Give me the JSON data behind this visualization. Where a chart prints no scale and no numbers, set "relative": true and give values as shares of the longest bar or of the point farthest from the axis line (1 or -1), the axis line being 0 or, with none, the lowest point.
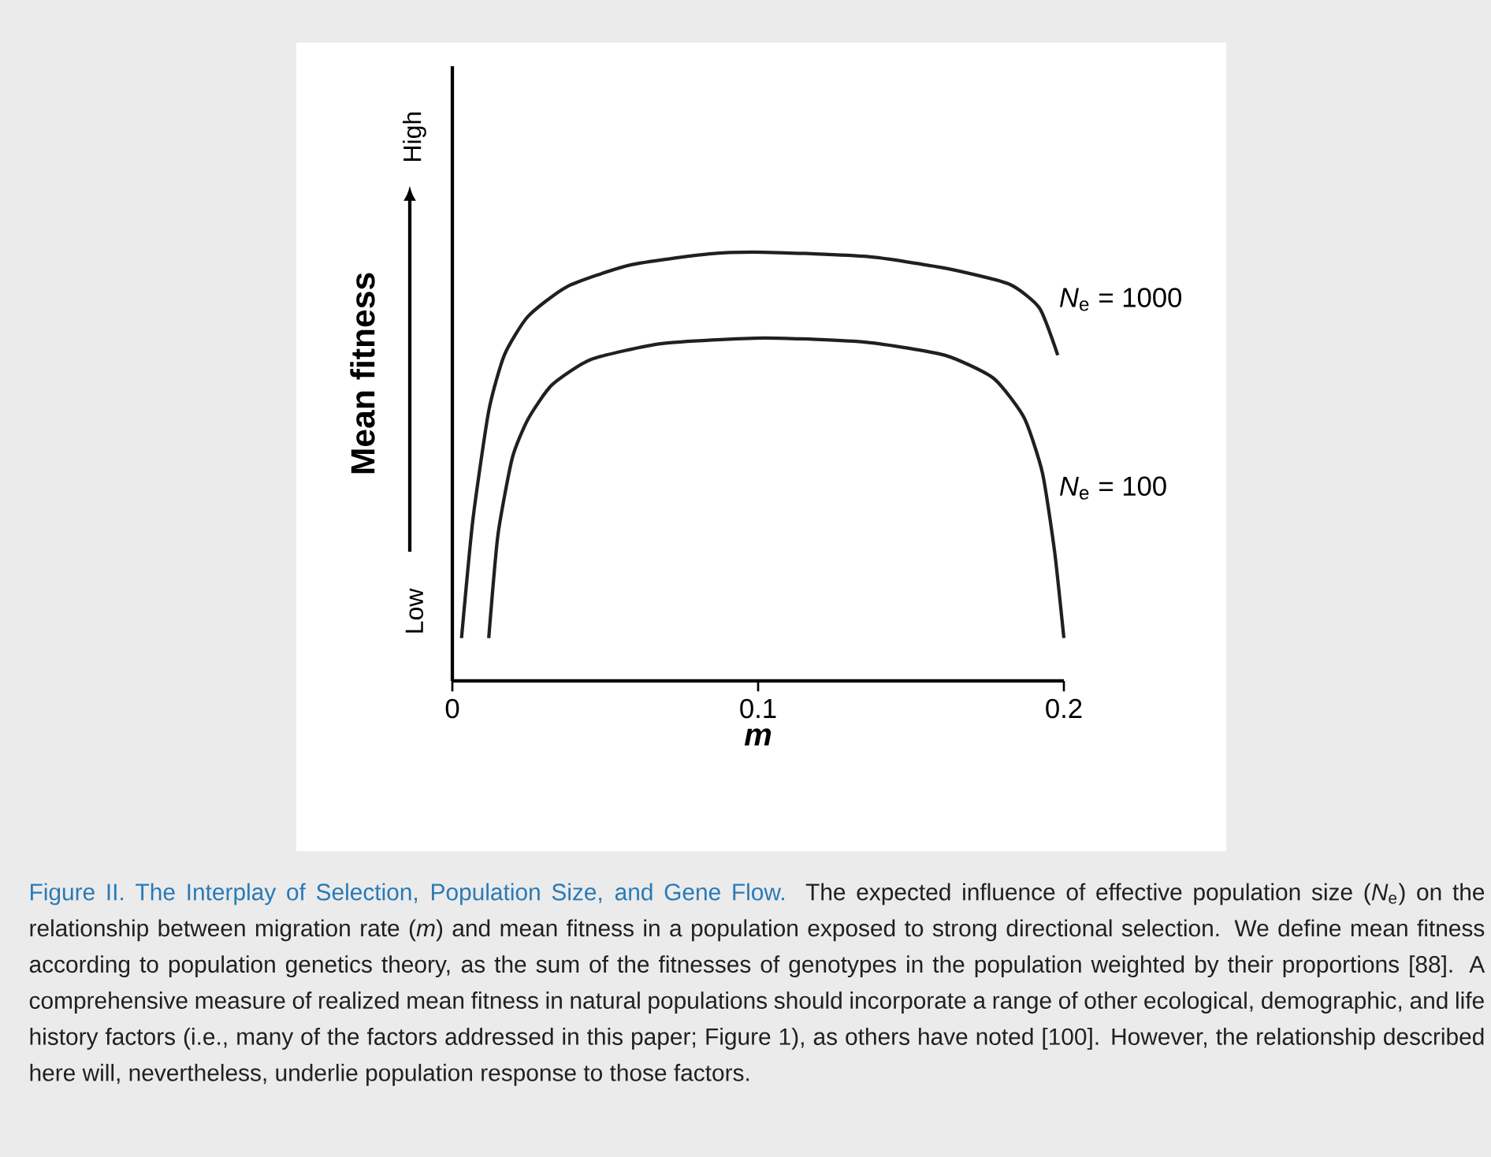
{
  "chart_data": {
    "type": "line",
    "relative": true,
    "xlabel": "m",
    "ylabel": "Mean fitness",
    "xlim": [
      0,
      0.2
    ],
    "xticks": [
      0,
      0.1,
      0.2
    ],
    "annotations": [
      "Figure II. The Interplay of Selection, Population Size, and Gene Flow.",
      "The expected influence of effective population size (*N*$_{e}$) on the relationship between migration rate (*m*) and mean fitness in a population exposed to strong directional selection. We define mean fitness according to population genetics theory, as the sum of the fitnesses of genotypes in the population weighted by their proportions [88]. A comprehensive measure of realized mean fitness in natural populations should incorporate a range of other ecological, demographic, and life history factors (i.e., many of the factors addressed in this paper; Figure 1), as others have noted [100]. However, the relationship described here will, nevertheless, underlie population response to those factors.",
      "Low",
      "High"
    ],
    "series": [
      {
        "name": "*N*$_{e}$ = 1000",
        "color": "#231f20",
        "x": [
          0.003,
          0.0067,
          0.0119,
          0.017,
          0.0247,
          0.0376,
          0.058,
          0.084,
          0.102,
          0.1356,
          0.161,
          0.182,
          0.192,
          0.198
        ],
        "values": [
          0.1,
          0.375,
          0.63,
          0.76,
          0.85,
          0.92,
          0.97,
          0.996,
          1.0,
          0.99,
          0.963,
          0.926,
          0.87,
          0.76
        ]
      },
      {
        "name": "*N*$_{e}$ = 100",
        "color": "#231f20",
        "x": [
          0.0119,
          0.0149,
          0.0196,
          0.0247,
          0.0325,
          0.0454,
          0.0686,
          0.102,
          0.1356,
          0.161,
          0.177,
          0.187,
          0.193,
          0.197,
          0.2
        ],
        "values": [
          0.1,
          0.34,
          0.52,
          0.61,
          0.69,
          0.75,
          0.787,
          0.8,
          0.79,
          0.76,
          0.706,
          0.614,
          0.485,
          0.3,
          0.1
        ]
      }
    ]
  }
}
